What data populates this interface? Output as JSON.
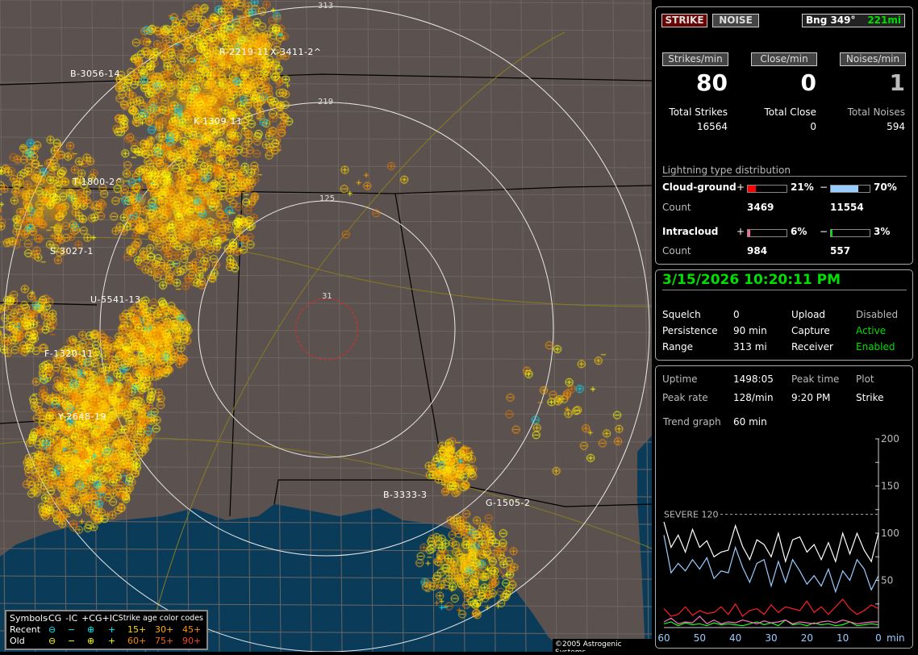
{
  "map": {
    "ring_labels": [
      "313",
      "219",
      "125",
      "31"
    ],
    "storm_labels": [
      "B-3056-14",
      "R-2219-11",
      "X-3411-2^",
      "K-1309-11",
      "T-1800-2^",
      "S-3027-1",
      "U-5541-13",
      "F-1320-11",
      "Y-2648-19",
      "B-3333-3",
      "G-1505-2"
    ],
    "copyright": "©2005 Astrogenic Systems",
    "colors": {
      "land": "#5b524f",
      "water": "#0a3c5a",
      "recent": "#00e0ff",
      "old": "#ffff00",
      "age15": "#ffd700",
      "age30": "#ffb000",
      "age45": "#ff9000",
      "age60": "#e07800",
      "age75": "#e05a00",
      "age90": "#d03000"
    }
  },
  "legend": {
    "headers": [
      "Symbols",
      "-CG",
      "-IC",
      "+CG",
      "+IC",
      "Strike age color codes"
    ],
    "recent_label": "Recent",
    "old_label": "Old",
    "recent_ages": [
      "15+",
      "30+",
      "45+"
    ],
    "old_ages": [
      "60+",
      "75+",
      "90+"
    ],
    "icons": [
      "minus-circle",
      "minus",
      "plus-circle",
      "plus"
    ]
  },
  "top": {
    "strike_btn": "STRIKE",
    "noise_btn": "NOISE",
    "bearing": "Bng 349°",
    "distance": "221mi",
    "rates": [
      {
        "label": "Strikes/min",
        "value": "80",
        "total_label": "Total Strikes",
        "total": "16564"
      },
      {
        "label": "Close/min",
        "value": "0",
        "total_label": "Total Close",
        "total": "0"
      },
      {
        "label": "Noises/min",
        "value": "1",
        "total_label": "Total Noises",
        "total": "594"
      }
    ],
    "dist_title": "Lightning type distribution",
    "cg": {
      "label": "Cloud-ground",
      "pos_pct": 21,
      "pos_text": "21%",
      "neg_pct": 70,
      "neg_text": "70%",
      "count_label": "Count",
      "pos_count": "3469",
      "neg_count": "11554"
    },
    "ic": {
      "label": "Intracloud",
      "pos_pct": 6,
      "pos_text": "6%",
      "neg_pct": 3,
      "neg_text": "3%",
      "count_label": "Count",
      "pos_count": "984",
      "neg_count": "557"
    },
    "plus": "+",
    "minus": "−"
  },
  "status": {
    "datetime": "3/15/2026 10:20:11 PM",
    "rows": [
      [
        "Squelch",
        "0",
        "Upload",
        "Disabled"
      ],
      [
        "Persistence",
        "90 min",
        "Capture",
        "Active"
      ],
      [
        "Range",
        "313 mi",
        "Receiver",
        "Enabled"
      ]
    ]
  },
  "stats": {
    "rows": [
      [
        "Uptime",
        "1498:05",
        "Peak time",
        "Plot"
      ],
      [
        "Peak rate",
        "128/min",
        "9:20 PM",
        "Strike"
      ]
    ],
    "trend_label": "Trend graph",
    "trend_value": "60 min"
  },
  "chart_data": {
    "type": "line",
    "xlabel": "min",
    "x_ticks": [
      "60",
      "50",
      "40",
      "30",
      "20",
      "10",
      "0"
    ],
    "xlim": [
      60,
      0
    ],
    "y_ticks": [
      "200",
      "150",
      "100",
      "50"
    ],
    "ylim": [
      0,
      200
    ],
    "threshold": {
      "label": "SEVERE 120",
      "value": 120
    },
    "x": [
      60,
      58,
      56,
      54,
      52,
      50,
      48,
      46,
      44,
      42,
      40,
      38,
      36,
      34,
      32,
      30,
      28,
      26,
      24,
      22,
      20,
      18,
      16,
      14,
      12,
      10,
      8,
      6,
      4,
      2,
      0
    ],
    "series": [
      {
        "color": "#ffffff",
        "values": [
          112,
          85,
          98,
          80,
          104,
          85,
          92,
          75,
          80,
          82,
          108,
          86,
          72,
          93,
          88,
          75,
          100,
          70,
          93,
          96,
          80,
          88,
          72,
          90,
          70,
          100,
          78,
          100,
          82,
          70,
          100
        ]
      },
      {
        "color": "#99ccff",
        "values": [
          98,
          58,
          68,
          60,
          72,
          62,
          74,
          52,
          60,
          58,
          85,
          64,
          48,
          68,
          72,
          44,
          70,
          48,
          72,
          60,
          46,
          55,
          44,
          62,
          38,
          60,
          50,
          72,
          62,
          40,
          55
        ]
      },
      {
        "color": "#ff2020",
        "values": [
          20,
          12,
          14,
          22,
          13,
          18,
          15,
          16,
          22,
          14,
          25,
          12,
          18,
          20,
          14,
          24,
          16,
          22,
          20,
          18,
          28,
          16,
          22,
          14,
          22,
          30,
          20,
          14,
          18,
          24,
          20
        ]
      },
      {
        "color": "#ff70c0",
        "values": [
          6,
          10,
          4,
          6,
          5,
          12,
          4,
          8,
          4,
          6,
          5,
          8,
          6,
          4,
          7,
          5,
          6,
          8,
          4,
          6,
          5,
          4,
          6,
          7,
          5,
          8,
          6,
          4,
          5,
          6,
          6
        ]
      },
      {
        "color": "#20ff20",
        "values": [
          4,
          6,
          2,
          5,
          3,
          4,
          2,
          5,
          3,
          4,
          3,
          2,
          4,
          6,
          3,
          5,
          2,
          8,
          3,
          4,
          2,
          5,
          3,
          4,
          2,
          3,
          6,
          2,
          3,
          4,
          3
        ]
      }
    ]
  }
}
